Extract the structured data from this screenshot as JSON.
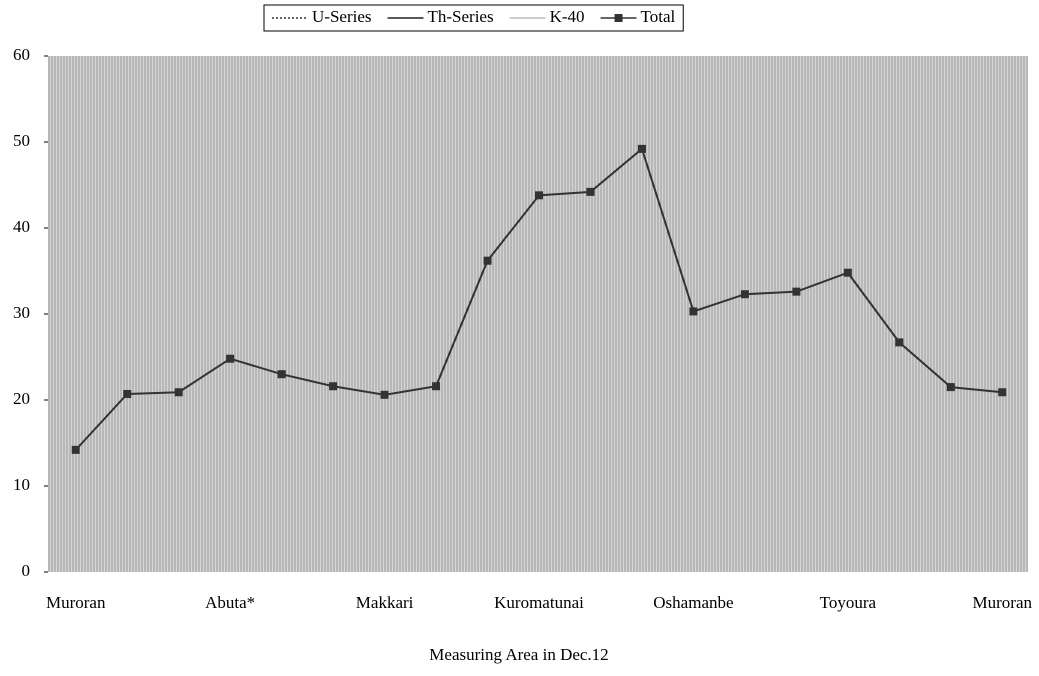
{
  "chart_data": {
    "type": "line",
    "x_label": "Measuring Area in Dec.12",
    "categories": [
      "Muroran",
      null,
      null,
      "Abuta*",
      null,
      null,
      "Makkari",
      null,
      null,
      "Kuromatunai",
      null,
      null,
      "Oshamanbe",
      null,
      null,
      "Toyoura",
      null,
      null,
      "Muroran"
    ],
    "series": [
      {
        "name": "U-Series",
        "color": "#333333",
        "dash": "2,2",
        "values": [
          null,
          null,
          null,
          null,
          null,
          null,
          null,
          null,
          null,
          null,
          null,
          null,
          null,
          null,
          null,
          null,
          null,
          null,
          null
        ]
      },
      {
        "name": "Th-Series",
        "color": "#222222",
        "values": [
          null,
          null,
          null,
          null,
          null,
          null,
          null,
          null,
          null,
          null,
          null,
          null,
          null,
          null,
          null,
          null,
          null,
          null,
          null
        ]
      },
      {
        "name": "K-40",
        "color": "#999999",
        "values": [
          null,
          null,
          null,
          null,
          null,
          null,
          null,
          null,
          null,
          null,
          null,
          null,
          null,
          null,
          null,
          null,
          null,
          null,
          null
        ]
      },
      {
        "name": "Total",
        "color": "#333333",
        "marker": "square",
        "values": [
          14.2,
          20.7,
          20.9,
          24.8,
          23.0,
          21.6,
          20.6,
          21.6,
          36.2,
          43.8,
          44.2,
          49.2,
          30.3,
          32.3,
          32.6,
          34.8,
          26.7,
          21.5,
          20.9
        ]
      }
    ],
    "ylim": [
      0,
      60
    ],
    "yticks": [
      0,
      10,
      20,
      30,
      40,
      50,
      60
    ]
  }
}
